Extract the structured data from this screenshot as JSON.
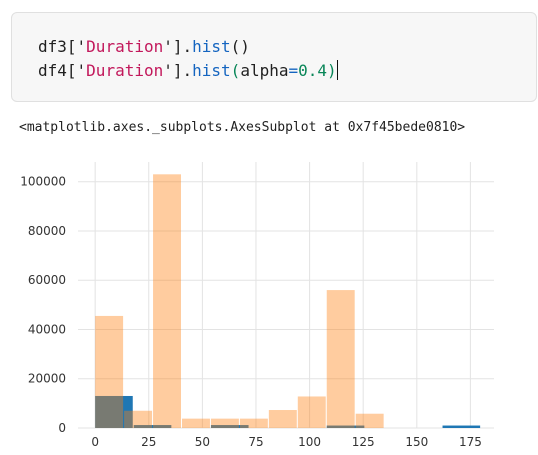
{
  "code_cell": {
    "line1": {
      "var": "df3",
      "bracket_open": "['",
      "key": "Duration",
      "bracket_close": "'].",
      "method": "hist",
      "args": "()"
    },
    "line2": {
      "var": "df4",
      "bracket_open": "['",
      "key": "Duration",
      "bracket_close": "'].",
      "method": "hist",
      "paren_open": "(",
      "kwarg": "alpha",
      "eq": "=",
      "value": "0.4",
      "paren_close": ")"
    }
  },
  "output": {
    "repr": "<matplotlib.axes._subplots.AxesSubplot at 0x7f45bede0810>"
  },
  "colors": {
    "series1": "#1f77b4",
    "series2": "#ff7f0e",
    "grid": "#e3e3e3"
  },
  "chart_data": {
    "type": "bar",
    "xlim": [
      -8,
      186
    ],
    "ylim": [
      0,
      108000
    ],
    "grid": true,
    "xticks": [
      0,
      25,
      50,
      75,
      100,
      125,
      150,
      175
    ],
    "yticks": [
      0,
      20000,
      40000,
      60000,
      80000,
      100000
    ],
    "series": [
      {
        "color": "#1f77b4",
        "alpha": 1.0,
        "bins": [
          [
            0,
            18,
            13000
          ],
          [
            18,
            36,
            1200
          ],
          [
            54,
            72,
            1200
          ],
          [
            108,
            126,
            1000
          ],
          [
            162,
            180,
            1000
          ]
        ]
      },
      {
        "color": "#ff7f0e",
        "alpha": 0.4,
        "bins": [
          [
            0,
            13.5,
            45500
          ],
          [
            13.5,
            27,
            7000
          ],
          [
            27,
            40.5,
            103000
          ],
          [
            40.5,
            54,
            3800
          ],
          [
            54,
            67.5,
            3800
          ],
          [
            67.5,
            81,
            3800
          ],
          [
            81,
            94.5,
            7300
          ],
          [
            94.5,
            108,
            12800
          ],
          [
            108,
            121.5,
            56000
          ],
          [
            121.5,
            135,
            5800
          ]
        ]
      }
    ]
  }
}
